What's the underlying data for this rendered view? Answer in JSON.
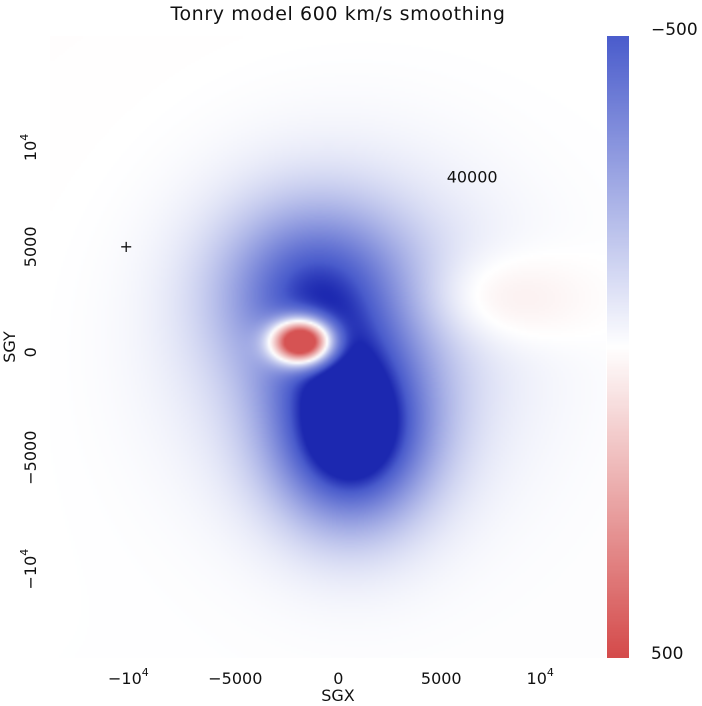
{
  "chart_data": {
    "type": "heatmap",
    "title": "Tonry model 600 km/s smoothing",
    "xlabel": "SGX",
    "ylabel": "SGY",
    "xlim": [
      -14000,
      13000
    ],
    "ylim": [
      -14500,
      15000
    ],
    "x_ticks": [
      {
        "value": -10000,
        "base": "−10",
        "exp": "4"
      },
      {
        "value": -5000,
        "base": "−5000",
        "exp": ""
      },
      {
        "value": 5000,
        "base": "5000",
        "exp": ""
      },
      {
        "value": 10000,
        "base": "10",
        "exp": "4"
      }
    ],
    "x_tick_zero": {
      "value": 0,
      "text": "0"
    },
    "y_ticks": [
      {
        "value": -10000,
        "base": "−10",
        "exp": "4"
      },
      {
        "value": -5000,
        "base": "−5000",
        "exp": ""
      },
      {
        "value": 0,
        "base": "0",
        "exp": ""
      },
      {
        "value": 5000,
        "base": "5000",
        "exp": ""
      },
      {
        "value": 10000,
        "base": "10",
        "exp": "4"
      }
    ],
    "colorbar": {
      "min": -500,
      "max": 500,
      "top_label": "−500",
      "bottom_label": "500",
      "top_color": "#4a5ccc",
      "mid_color": "#ffffff",
      "bottom_color": "#d44a4a"
    },
    "features": [
      {
        "name": "blue-core-south",
        "x": 600,
        "y": -3800,
        "value": -500
      },
      {
        "name": "red-core",
        "x": -1800,
        "y": 500,
        "value": 450
      },
      {
        "name": "blue-lobe-north",
        "x": -1200,
        "y": 3000,
        "value": -260
      }
    ],
    "annotations": [
      {
        "text": "40000",
        "x": 6500,
        "y": 8300
      },
      {
        "text": "+",
        "x": -10300,
        "y": 5000
      }
    ]
  }
}
